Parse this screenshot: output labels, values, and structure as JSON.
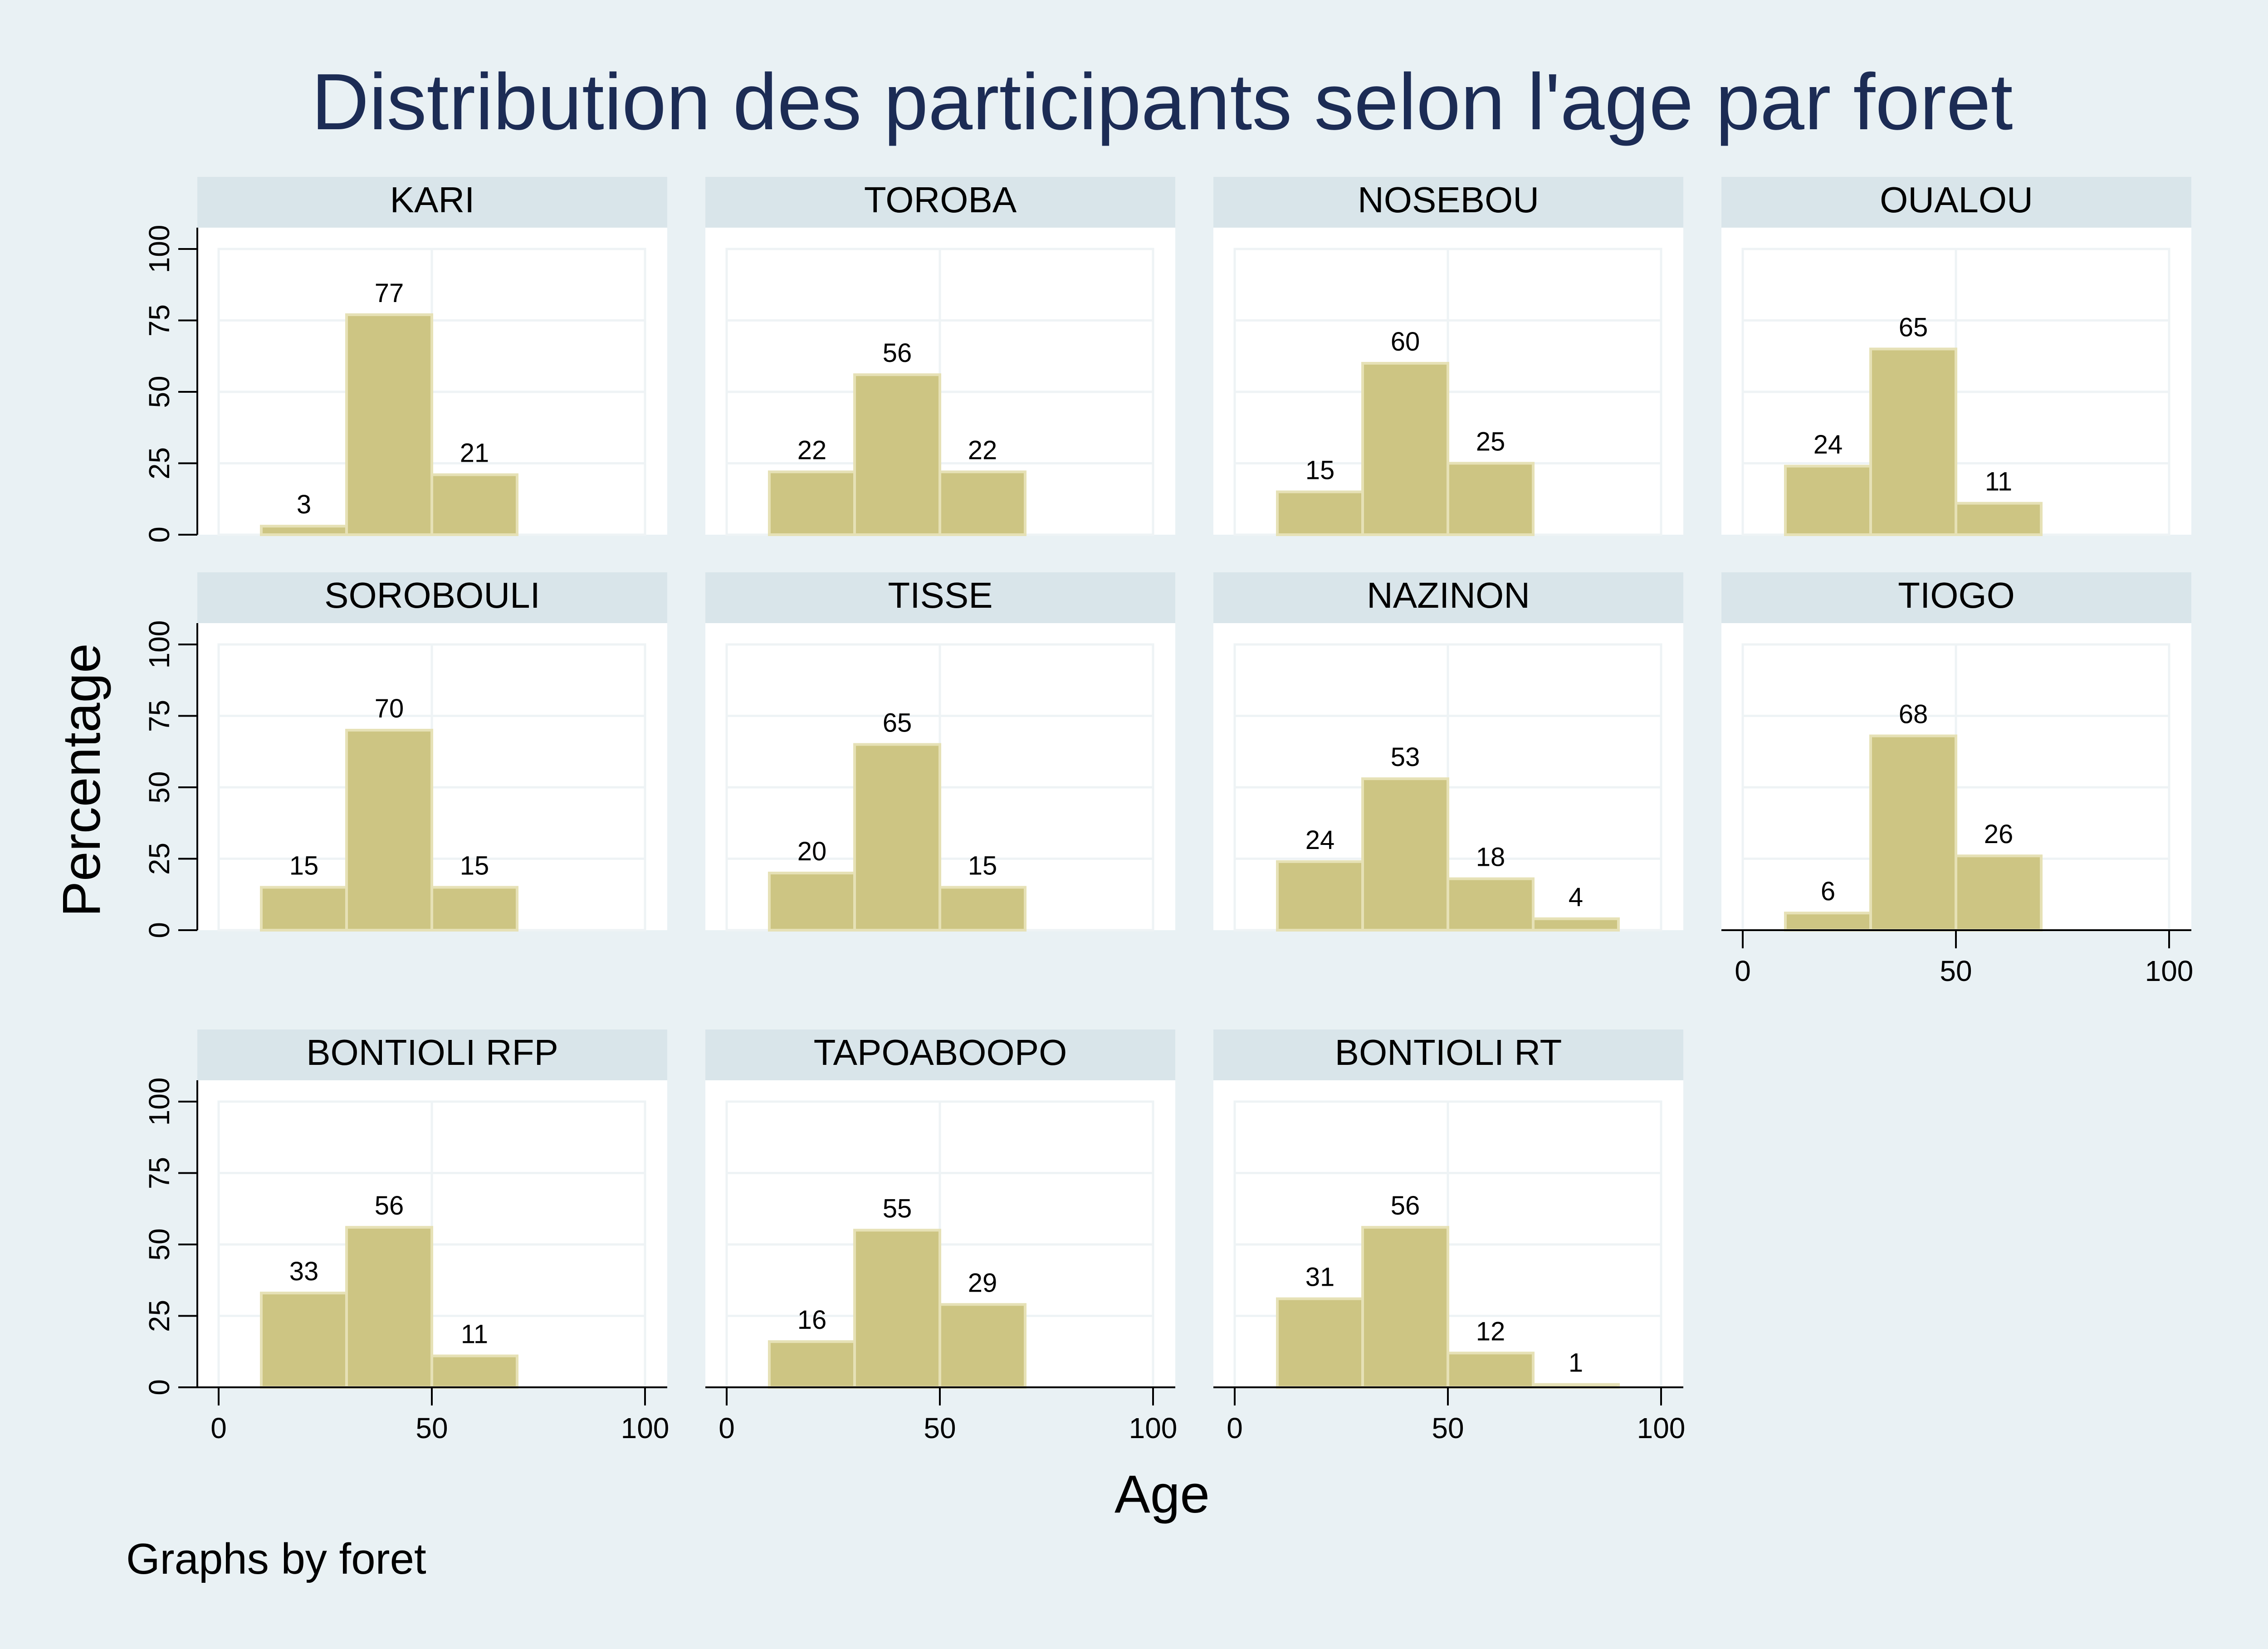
{
  "chart_data": {
    "type": "bar",
    "title": "Distribution des participants selon l'age par foret",
    "xlabel": "Age",
    "ylabel": "Percentage",
    "note": "Graphs by foret",
    "bin_width": 20,
    "bin_start": 10,
    "xlim": [
      0,
      100
    ],
    "ylim": [
      0,
      100
    ],
    "x_ticks": [
      "0",
      "50",
      "100"
    ],
    "y_ticks": [
      "0",
      "25",
      "50",
      "75",
      "100"
    ],
    "grid": true,
    "bar_color": "#cdc583",
    "bar_edge_color": "#e6e1b6",
    "panels": [
      {
        "name": "KARI",
        "values": [
          3,
          77,
          21
        ]
      },
      {
        "name": "TOROBA",
        "values": [
          22,
          56,
          22
        ]
      },
      {
        "name": "NOSEBOU",
        "values": [
          15,
          60,
          25
        ]
      },
      {
        "name": "OUALOU",
        "values": [
          24,
          65,
          11
        ]
      },
      {
        "name": "SOROBOULI",
        "values": [
          15,
          70,
          15
        ]
      },
      {
        "name": "TISSE",
        "values": [
          20,
          65,
          15
        ]
      },
      {
        "name": "NAZINON",
        "values": [
          24,
          53,
          18,
          4
        ]
      },
      {
        "name": "TIOGO",
        "values": [
          6,
          68,
          26
        ]
      },
      {
        "name": "BONTIOLI RFP",
        "values": [
          33,
          56,
          11
        ]
      },
      {
        "name": "TAPOABOOPO",
        "values": [
          16,
          55,
          29
        ]
      },
      {
        "name": "BONTIOLI RT",
        "values": [
          31,
          56,
          12,
          1
        ]
      }
    ]
  }
}
